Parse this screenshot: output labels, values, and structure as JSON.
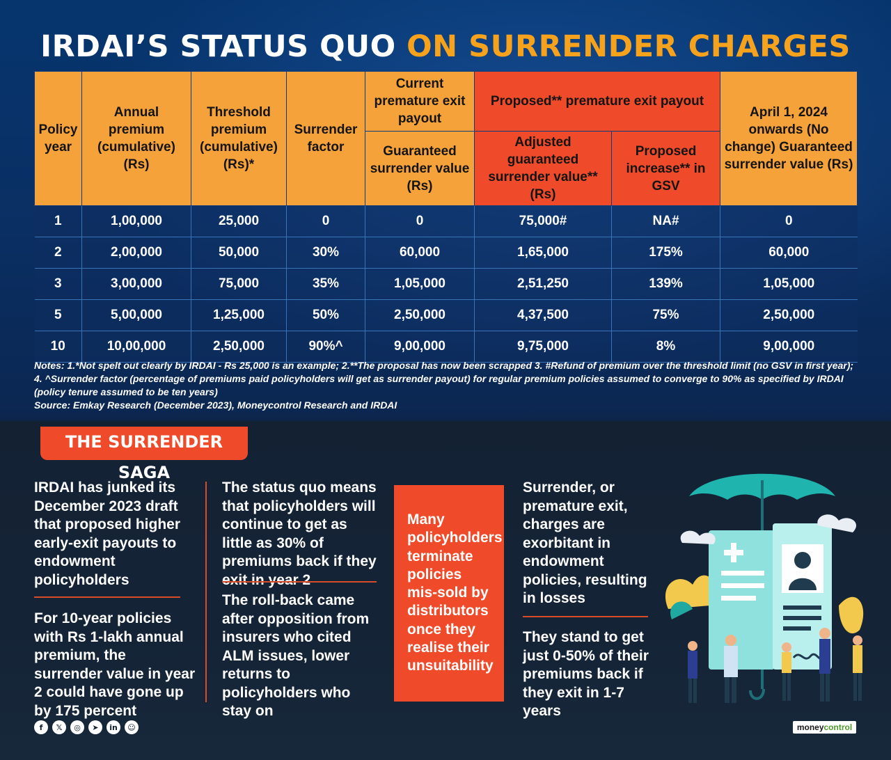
{
  "title": {
    "part1": "IRDAI’S STATUS QUO",
    "part2": "ON SURRENDER CHARGES"
  },
  "table": {
    "headers": {
      "policy_year": "Policy year",
      "annual_premium": "Annual premium (cumulative) (Rs)",
      "threshold_premium": "Threshold premium (cumulative) (Rs)*",
      "surrender_factor": "Surrender factor",
      "current_group": "Current premature exit payout",
      "current_gsv": "Guaranteed surrender value (Rs)",
      "proposed_group": "Proposed** premature exit payout",
      "adjusted_gsv": "Adjusted guaranteed surrender value** (Rs)",
      "proposed_increase": "Proposed increase** in GSV",
      "april_2024": "April 1, 2024 onwards (No change) Guaranteed surrender value (Rs)"
    },
    "rows": [
      [
        "1",
        "1,00,000",
        "25,000",
        "0",
        "0",
        "75,000#",
        "NA#",
        "0"
      ],
      [
        "2",
        "2,00,000",
        "50,000",
        "30%",
        "60,000",
        "1,65,000",
        "175%",
        "60,000"
      ],
      [
        "3",
        "3,00,000",
        "75,000",
        "35%",
        "1,05,000",
        "2,51,250",
        "139%",
        "1,05,000"
      ],
      [
        "5",
        "5,00,000",
        "1,25,000",
        "50%",
        "2,50,000",
        "4,37,500",
        "75%",
        "2,50,000"
      ],
      [
        "10",
        "10,00,000",
        "2,50,000",
        "90%^",
        "9,00,000",
        "9,75,000",
        "8%",
        "9,00,000"
      ]
    ]
  },
  "notes": {
    "line1": "Notes: 1.*Not spelt out clearly by IRDAI - Rs 25,000 is an example; 2.**The proposal has now been scrapped 3. #Refund of premium over the threshold limit (no GSV in first year); 4. ^Surrender factor (percentage of premiums paid policyholders will get as surrender payout) for regular premium policies assumed to converge to 90% as specified by IRDAI (policy tenure assumed to be ten years)",
    "source": "Source: Emkay Research (December 2023), Moneycontrol Research and IRDAI"
  },
  "saga": {
    "heading": "THE SURRENDER SAGA",
    "col1_a": "IRDAI has junked its December 2023 draft that proposed higher early-exit payouts to endowment policyholders",
    "col1_b": "For 10-year policies with Rs 1-lakh annual premium, the surrender value in year 2 could have gone up by 175 percent",
    "col2_a": "The status quo means that policyholders will continue to get as little as 30% of premiums back if they exit in year 2",
    "col2_b": "The roll-back came after opposition from insurers who cited ALM issues, lower returns to policyholders who stay on",
    "box": "Many policyholders terminate policies mis-sold by distributors once they realise their unsuitability",
    "col4_a": "Surrender, or premature exit, charges are exorbitant in endowment policies, resulting in losses",
    "col4_b": "They stand to get just 0-50% of their premiums back if they exit in 1-7 years"
  },
  "footer": {
    "social": [
      "f",
      "𝕏",
      "◎",
      "➤",
      "in",
      "☺"
    ],
    "brand_a": "money",
    "brand_b": "control"
  },
  "colors": {
    "orange": "#f6a23a",
    "red": "#ef4b2a",
    "navy": "#0a2f63"
  }
}
